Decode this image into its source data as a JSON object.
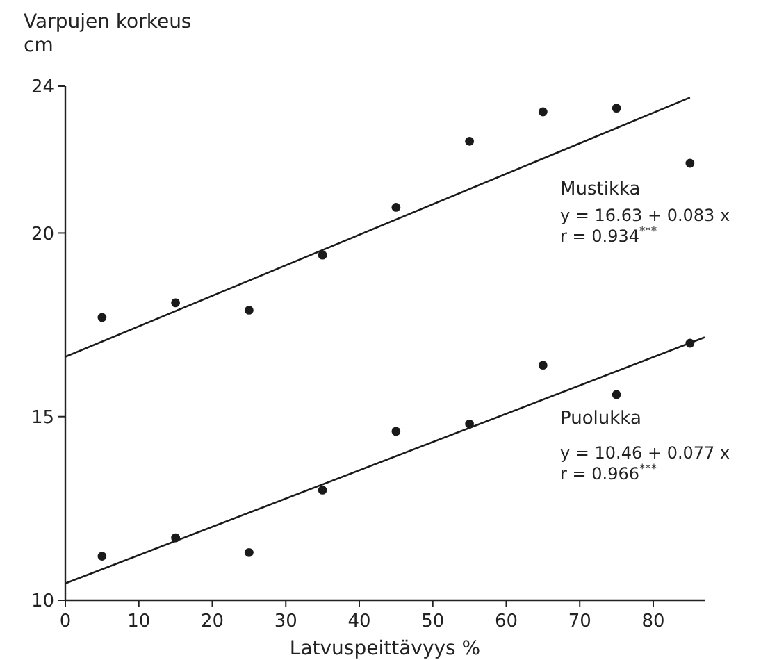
{
  "chart_data": {
    "type": "scatter",
    "xlabel": "Latvuspeittävyys %",
    "ylabel": "Varpujen korkeus\ncm",
    "xlim": [
      0,
      87
    ],
    "ylim": [
      10,
      24
    ],
    "xticks": [
      0,
      10,
      20,
      30,
      40,
      50,
      60,
      70,
      80
    ],
    "yticks": [
      10,
      15,
      20,
      24
    ],
    "grid": false,
    "x": [
      5,
      15,
      25,
      35,
      45,
      55,
      65,
      75,
      85
    ],
    "series": [
      {
        "name": "Mustikka",
        "color": "#1a1a1a",
        "marker": "circle",
        "values": [
          17.7,
          18.1,
          17.9,
          19.4,
          20.7,
          22.5,
          23.3,
          23.4,
          21.9
        ]
      },
      {
        "name": "Puolukka",
        "color": "#1a1a1a",
        "marker": "circle",
        "values": [
          11.2,
          11.7,
          11.3,
          13.0,
          14.6,
          14.8,
          16.4,
          15.6,
          17.0
        ]
      },
      {
        "type": "line",
        "color": "#1a1a1a",
        "x": [
          0,
          85
        ],
        "values": [
          16.63,
          23.69
        ]
      },
      {
        "type": "line",
        "color": "#1a1a1a",
        "x": [
          0,
          87
        ],
        "values": [
          10.46,
          17.16
        ]
      }
    ],
    "annotations": [
      "y = 16.63 + 0.083 x\nr = 0.934$^{***}$",
      "y = 10.46 + 0.077 x\nr = 0.966$^{***}$"
    ]
  }
}
